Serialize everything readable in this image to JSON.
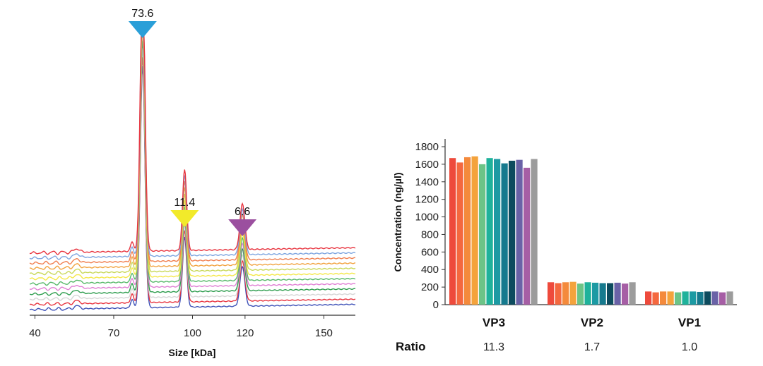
{
  "chart_data": [
    {
      "type": "line",
      "xlabel": "Size [kDa]",
      "xticks": [
        40,
        70,
        100,
        120,
        150
      ],
      "xlim": [
        38,
        162
      ],
      "peaks": [
        {
          "size": 81,
          "label": "73.6",
          "color": "#2a9fd8"
        },
        {
          "size": 97,
          "label": "11.4",
          "color": "#f2ea2a"
        },
        {
          "size": 119,
          "label": "6.6",
          "color": "#9b4f9f"
        }
      ],
      "series_colors": [
        "#e8343f",
        "#7da5e0",
        "#f07e4e",
        "#f2a340",
        "#c9d85a",
        "#f4e84a",
        "#58b96a",
        "#e07fd4",
        "#2e9d4e",
        "#d6d6d6",
        "#e8343f",
        "#3f52b8"
      ]
    },
    {
      "type": "bar",
      "ylabel": "Concentration (ng/µl)",
      "ylim": [
        0,
        1800
      ],
      "yticks": [
        0,
        200,
        400,
        600,
        800,
        1000,
        1200,
        1400,
        1600,
        1800
      ],
      "categories": [
        "VP3",
        "VP2",
        "VP1"
      ],
      "values": [
        [
          1670,
          1620,
          1680,
          1690,
          1600,
          1670,
          1660,
          1610,
          1640,
          1650,
          1560,
          1660
        ],
        [
          255,
          245,
          255,
          260,
          240,
          255,
          250,
          245,
          245,
          250,
          240,
          255
        ],
        [
          150,
          140,
          150,
          150,
          140,
          150,
          150,
          145,
          150,
          150,
          140,
          150
        ]
      ],
      "bar_colors": [
        "#ee4a3c",
        "#f4683f",
        "#f48a3c",
        "#f4a33c",
        "#6cc487",
        "#1fb29b",
        "#1c9aa3",
        "#167a8e",
        "#0d4b5e",
        "#6a62a7",
        "#a65ea5",
        "#9c9c9c"
      ],
      "row_label": "Ratio",
      "ratios": [
        "11.3",
        "1.7",
        "1.0"
      ]
    }
  ]
}
